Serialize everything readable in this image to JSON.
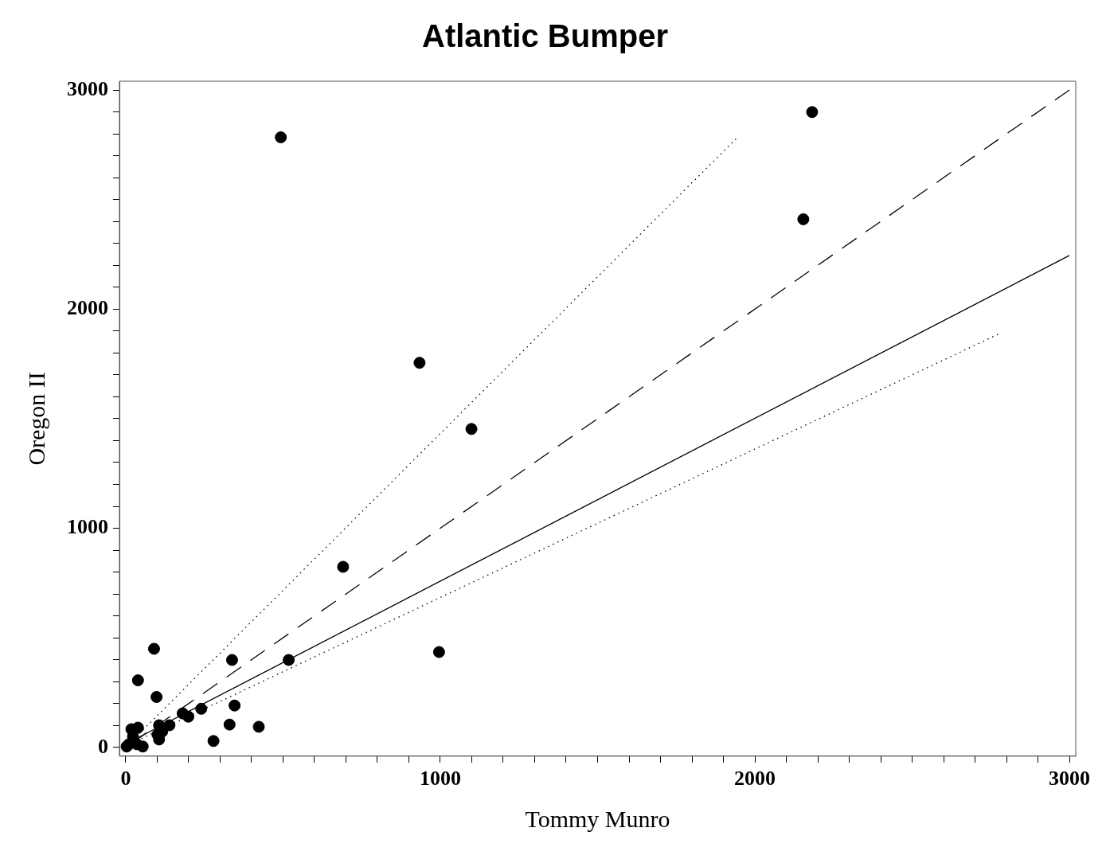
{
  "chart_data": {
    "type": "scatter",
    "title": "Atlantic Bumper",
    "xlabel": "Tommy Munro",
    "ylabel": "Oregon II",
    "xlim": [
      -20,
      3020
    ],
    "ylim": [
      -40,
      3040
    ],
    "xticks": [
      0,
      {
        "value": 100,
        "label": null
      },
      {
        "value": 200,
        "label": null
      },
      {
        "value": 300,
        "label": null
      },
      {
        "value": 400,
        "label": null
      },
      {
        "value": 500,
        "label": null
      },
      {
        "value": 600,
        "label": null
      },
      {
        "value": 700,
        "label": null
      },
      {
        "value": 800,
        "label": null
      },
      {
        "value": 900,
        "label": null
      },
      1000,
      {
        "value": 1100,
        "label": null
      },
      {
        "value": 1200,
        "label": null
      },
      {
        "value": 1300,
        "label": null
      },
      {
        "value": 1400,
        "label": null
      },
      {
        "value": 1500,
        "label": null
      },
      {
        "value": 1600,
        "label": null
      },
      {
        "value": 1700,
        "label": null
      },
      {
        "value": 1800,
        "label": null
      },
      {
        "value": 1900,
        "label": null
      },
      2000,
      {
        "value": 2100,
        "label": null
      },
      {
        "value": 2200,
        "label": null
      },
      {
        "value": 2300,
        "label": null
      },
      {
        "value": 2400,
        "label": null
      },
      {
        "value": 2500,
        "label": null
      },
      {
        "value": 2600,
        "label": null
      },
      {
        "value": 2700,
        "label": null
      },
      {
        "value": 2800,
        "label": null
      },
      {
        "value": 2900,
        "label": null
      },
      3000
    ],
    "yticks": [
      0,
      {
        "value": 100,
        "label": null
      },
      {
        "value": 200,
        "label": null
      },
      {
        "value": 300,
        "label": null
      },
      {
        "value": 400,
        "label": null
      },
      {
        "value": 500,
        "label": null
      },
      {
        "value": 600,
        "label": null
      },
      {
        "value": 700,
        "label": null
      },
      {
        "value": 800,
        "label": null
      },
      {
        "value": 900,
        "label": null
      },
      1000,
      {
        "value": 1100,
        "label": null
      },
      {
        "value": 1200,
        "label": null
      },
      {
        "value": 1300,
        "label": null
      },
      {
        "value": 1400,
        "label": null
      },
      {
        "value": 1500,
        "label": null
      },
      {
        "value": 1600,
        "label": null
      },
      {
        "value": 1700,
        "label": null
      },
      {
        "value": 1800,
        "label": null
      },
      {
        "value": 1900,
        "label": null
      },
      2000,
      {
        "value": 2100,
        "label": null
      },
      {
        "value": 2200,
        "label": null
      },
      {
        "value": 2300,
        "label": null
      },
      {
        "value": 2400,
        "label": null
      },
      {
        "value": 2500,
        "label": null
      },
      {
        "value": 2600,
        "label": null
      },
      {
        "value": 2700,
        "label": null
      },
      {
        "value": 2800,
        "label": null
      },
      {
        "value": 2900,
        "label": null
      },
      3000
    ],
    "grid": false,
    "legend": false,
    "series": [
      {
        "color": "#000000",
        "marker": "circle",
        "x": [
          493,
          2182,
          2154,
          934,
          1099,
          691,
          996,
          518,
          338,
          90,
          39,
          98,
          346,
          240,
          181,
          199,
          330,
          423,
          279,
          139,
          106,
          116,
          101,
          106,
          18,
          39,
          23,
          3,
          10,
          54,
          36
        ],
        "values": [
          2784,
          2899,
          2410,
          1755,
          1453,
          824,
          435,
          399,
          399,
          450,
          306,
          230,
          191,
          176,
          155,
          140,
          104,
          94,
          29,
          101,
          101,
          72,
          58,
          36,
          83,
          90,
          50,
          4,
          14,
          4,
          14
        ]
      },
      {
        "type": "line",
        "color": "#000000",
        "line_style": "solid",
        "x": [
          20,
          3000
        ],
        "values": [
          30,
          2245
        ]
      },
      {
        "type": "line",
        "color": "#000000",
        "line_style": "dashed",
        "x": [
          20,
          3000
        ],
        "values": [
          20,
          3000
        ]
      },
      {
        "type": "line",
        "color": "#000000",
        "line_style": "dotted",
        "x": [
          20,
          1940
        ],
        "values": [
          30,
          2777
        ]
      },
      {
        "type": "line",
        "color": "#000000",
        "line_style": "dotted",
        "x": [
          20,
          2773
        ],
        "values": [
          20,
          1885
        ]
      }
    ]
  }
}
